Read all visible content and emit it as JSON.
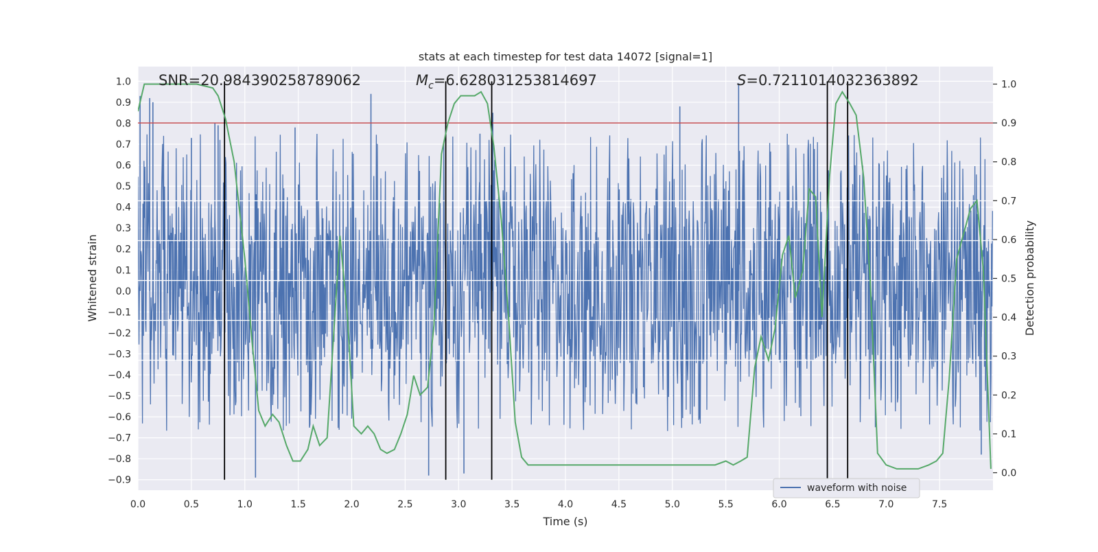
{
  "chart_data": {
    "type": "line",
    "title": "stats at each timestep for test data 14072 [signal=1]",
    "xlabel": "Time (s)",
    "ylabel": "Whitened strain",
    "y2label": "Detection probability",
    "xlim": [
      0.0,
      8.0
    ],
    "ylim": [
      -0.95,
      1.07
    ],
    "y2lim": [
      -0.045,
      1.045
    ],
    "xticks": [
      "0.0",
      "0.5",
      "1.0",
      "1.5",
      "2.0",
      "2.5",
      "3.0",
      "3.5",
      "4.0",
      "4.5",
      "5.0",
      "5.5",
      "6.0",
      "6.5",
      "7.0",
      "7.5"
    ],
    "yticks": [
      "−0.9",
      "−0.8",
      "−0.7",
      "−0.6",
      "−0.5",
      "−0.4",
      "−0.3",
      "−0.2",
      "−0.1",
      "0.0",
      "0.1",
      "0.2",
      "0.3",
      "0.4",
      "0.5",
      "0.6",
      "0.7",
      "0.8",
      "0.9",
      "1.0"
    ],
    "y2ticks": [
      "0.0",
      "0.1",
      "0.2",
      "0.3",
      "0.4",
      "0.5",
      "0.6",
      "0.7",
      "0.8",
      "0.9",
      "1.0"
    ],
    "grid": true,
    "legend_position": "bottom-right",
    "annotations": {
      "snr": "SNR=20.984390258789062",
      "mc_symbol": "M",
      "mc_sub": "c",
      "mc_value": "=6.628031253814697",
      "s_symbol": "S",
      "s_value": "=0.7211014032363892"
    },
    "threshold": {
      "axis": "y2",
      "value": 0.9,
      "color": "#c44e52"
    },
    "vertical_lines": {
      "color": "#000000",
      "x": [
        0.81,
        2.88,
        3.31,
        6.45,
        6.64
      ]
    },
    "colors": {
      "waveform": "#4c72b0",
      "probability": "#55a868",
      "background": "#eaeaf2",
      "grid": "#ffffff"
    },
    "series": [
      {
        "name": "waveform with noise",
        "axis": "y",
        "noise_band": [
          -0.35,
          0.43
        ],
        "peaks": [
          {
            "x": 0.02,
            "y": 0.93
          },
          {
            "x": 0.11,
            "y": 0.92
          },
          {
            "x": 0.14,
            "y": 0.9
          },
          {
            "x": 0.5,
            "y": 0.73
          },
          {
            "x": 0.72,
            "y": 0.8
          },
          {
            "x": 0.75,
            "y": 0.79
          },
          {
            "x": 1.1,
            "y": -0.89
          },
          {
            "x": 1.47,
            "y": 0.78
          },
          {
            "x": 2.18,
            "y": 0.94
          },
          {
            "x": 2.72,
            "y": -0.88
          },
          {
            "x": 3.05,
            "y": -0.87
          },
          {
            "x": 3.2,
            "y": 0.75
          },
          {
            "x": 3.32,
            "y": 0.85
          },
          {
            "x": 5.07,
            "y": 0.88
          },
          {
            "x": 5.62,
            "y": 0.99
          },
          {
            "x": 6.45,
            "y": -0.9
          },
          {
            "x": 7.89,
            "y": -0.78
          }
        ]
      },
      {
        "name": "",
        "axis": "y2",
        "x": [
          0.0,
          0.06,
          0.13,
          0.25,
          0.4,
          0.55,
          0.7,
          0.75,
          0.82,
          0.9,
          1.0,
          1.07,
          1.13,
          1.19,
          1.26,
          1.32,
          1.39,
          1.45,
          1.52,
          1.59,
          1.64,
          1.7,
          1.77,
          1.83,
          1.89,
          1.96,
          2.02,
          2.09,
          2.15,
          2.21,
          2.27,
          2.33,
          2.4,
          2.46,
          2.52,
          2.58,
          2.64,
          2.71,
          2.77,
          2.84,
          2.9,
          2.96,
          3.02,
          3.08,
          3.15,
          3.21,
          3.27,
          3.33,
          3.4,
          3.47,
          3.53,
          3.59,
          3.65,
          3.72,
          3.8,
          3.9,
          4.0,
          4.1,
          4.2,
          4.4,
          4.6,
          4.8,
          5.0,
          5.2,
          5.31,
          5.4,
          5.5,
          5.57,
          5.64,
          5.7,
          5.77,
          5.83,
          5.9,
          5.96,
          6.03,
          6.09,
          6.15,
          6.22,
          6.28,
          6.34,
          6.4,
          6.47,
          6.53,
          6.59,
          6.66,
          6.72,
          6.79,
          6.85,
          6.92,
          7.0,
          7.1,
          7.2,
          7.3,
          7.4,
          7.47,
          7.53,
          7.59,
          7.66,
          7.72,
          7.79,
          7.85,
          7.91,
          7.98
        ],
        "values": [
          0.93,
          1.0,
          1.0,
          1.0,
          1.0,
          1.0,
          0.99,
          0.97,
          0.91,
          0.8,
          0.55,
          0.33,
          0.16,
          0.12,
          0.15,
          0.13,
          0.07,
          0.03,
          0.03,
          0.06,
          0.12,
          0.07,
          0.09,
          0.35,
          0.61,
          0.4,
          0.12,
          0.1,
          0.12,
          0.1,
          0.06,
          0.05,
          0.06,
          0.1,
          0.15,
          0.25,
          0.2,
          0.22,
          0.38,
          0.82,
          0.9,
          0.95,
          0.97,
          0.97,
          0.97,
          0.98,
          0.95,
          0.84,
          0.65,
          0.39,
          0.13,
          0.04,
          0.02,
          0.02,
          0.02,
          0.02,
          0.02,
          0.02,
          0.02,
          0.02,
          0.02,
          0.02,
          0.02,
          0.02,
          0.02,
          0.02,
          0.03,
          0.02,
          0.03,
          0.04,
          0.27,
          0.35,
          0.29,
          0.37,
          0.56,
          0.61,
          0.45,
          0.52,
          0.73,
          0.71,
          0.4,
          0.76,
          0.95,
          0.98,
          0.95,
          0.92,
          0.76,
          0.5,
          0.05,
          0.02,
          0.01,
          0.01,
          0.01,
          0.02,
          0.03,
          0.05,
          0.24,
          0.55,
          0.61,
          0.68,
          0.7,
          0.52,
          0.01
        ]
      }
    ]
  }
}
